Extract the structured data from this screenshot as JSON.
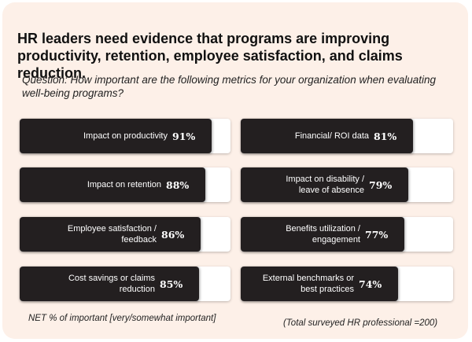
{
  "title": "HR leaders need evidence that programs are improving productivity, retention, employee satisfaction, and claims reduction.",
  "question": "Question: How important are the following metrics for your organization when evaluating well-being programs?",
  "footnote_left": "NET % of important  [very/somewhat important]",
  "footnote_right": "(Total surveyed HR professional  =200)",
  "colors": {
    "fill": "#231f20",
    "track": "#ffffff",
    "background": "#fdf0e8"
  },
  "chart_data": {
    "type": "bar",
    "orientation": "horizontal",
    "xlim": [
      0,
      100
    ],
    "grid": false,
    "categories": [
      "Impact on productivity",
      "Impact on retention",
      "Employee satisfaction / feedback",
      "Cost savings or claims reduction",
      "Financial/ ROI data",
      "Impact on disability / leave of absence",
      "Benefits utilization / engagement",
      "External benchmarks or best practices"
    ],
    "values": [
      91,
      88,
      86,
      85,
      81,
      79,
      77,
      74
    ],
    "value_labels": [
      "91%",
      "88%",
      "86%",
      "85%",
      "81%",
      "79%",
      "77%",
      "74%"
    ],
    "category_lines": [
      [
        "Impact on productivity"
      ],
      [
        "Impact on retention"
      ],
      [
        "Employee satisfaction /",
        "feedback"
      ],
      [
        "Cost savings or claims",
        "reduction"
      ],
      [
        "Financial/ ROI data"
      ],
      [
        "Impact on disability /",
        "leave of absence"
      ],
      [
        "Benefits utilization /",
        "engagement"
      ],
      [
        "External benchmarks or",
        "best practices"
      ]
    ]
  }
}
